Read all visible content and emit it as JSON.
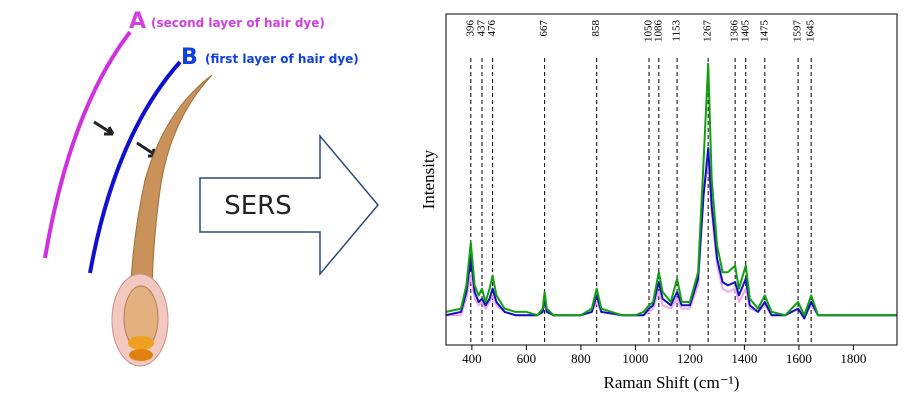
{
  "diagram": {
    "label_a": "A",
    "caption_a": "(second layer of hair dye)",
    "label_b": "B",
    "caption_b": "(first layer of hair dye)",
    "arrow_text": "SERS"
  },
  "chart_data": {
    "type": "line",
    "xlabel": "Raman Shift (cm⁻¹)",
    "ylabel": "Intensity",
    "xlim": [
      305,
      1960
    ],
    "ylim": [
      0,
      100
    ],
    "xticks": [
      400,
      600,
      800,
      1000,
      1200,
      1400,
      1600,
      1800
    ],
    "peaks": [
      396,
      437,
      476,
      667,
      858,
      1050,
      1086,
      1153,
      1267,
      1366,
      1405,
      1475,
      1597,
      1645
    ],
    "x": [
      305,
      360,
      380,
      396,
      410,
      425,
      437,
      450,
      465,
      476,
      490,
      520,
      560,
      600,
      640,
      660,
      667,
      675,
      700,
      800,
      840,
      858,
      875,
      950,
      1000,
      1030,
      1050,
      1065,
      1086,
      1100,
      1130,
      1153,
      1170,
      1200,
      1230,
      1250,
      1267,
      1280,
      1300,
      1320,
      1340,
      1366,
      1380,
      1405,
      1420,
      1450,
      1475,
      1500,
      1550,
      1597,
      1620,
      1645,
      1670,
      1750,
      1850,
      1960
    ],
    "series": [
      {
        "color": "#f0a8f0",
        "values": [
          9,
          9,
          14,
          21,
          14,
          12,
          13,
          11,
          13,
          15,
          12,
          10,
          9,
          9,
          9,
          10,
          13,
          10,
          9,
          9,
          10,
          13,
          10,
          9,
          9,
          9,
          10,
          11,
          16,
          12,
          11,
          14,
          11,
          11,
          18,
          45,
          56,
          40,
          24,
          17,
          16,
          17,
          13,
          17,
          11,
          10,
          12,
          9,
          9,
          11,
          9,
          12,
          9,
          9,
          9,
          9
        ]
      },
      {
        "color": "#1010c0",
        "values": [
          9,
          10,
          16,
          26,
          16,
          13,
          14,
          12,
          14,
          17,
          13,
          10,
          9,
          9,
          9,
          10,
          14,
          10,
          9,
          9,
          10,
          15,
          10,
          9,
          9,
          9,
          11,
          12,
          19,
          14,
          12,
          16,
          12,
          12,
          20,
          45,
          59.5,
          42,
          26,
          19,
          18,
          19,
          15,
          20,
          12,
          10,
          13,
          9,
          9,
          11,
          8,
          13,
          9,
          9,
          9,
          9
        ]
      },
      {
        "color": "#10a010",
        "values": [
          10,
          11,
          18,
          31,
          18,
          15,
          17,
          13,
          17,
          21,
          15,
          11,
          10,
          10,
          9,
          11,
          16,
          11,
          9,
          9,
          11,
          17,
          11,
          9,
          9,
          10,
          12,
          13,
          22,
          16,
          13,
          20,
          13,
          13,
          22,
          55,
          85,
          50,
          30,
          22,
          22,
          24,
          17,
          24,
          14,
          11,
          15,
          10,
          9,
          13,
          9,
          15,
          9,
          9,
          9,
          9
        ]
      }
    ]
  }
}
